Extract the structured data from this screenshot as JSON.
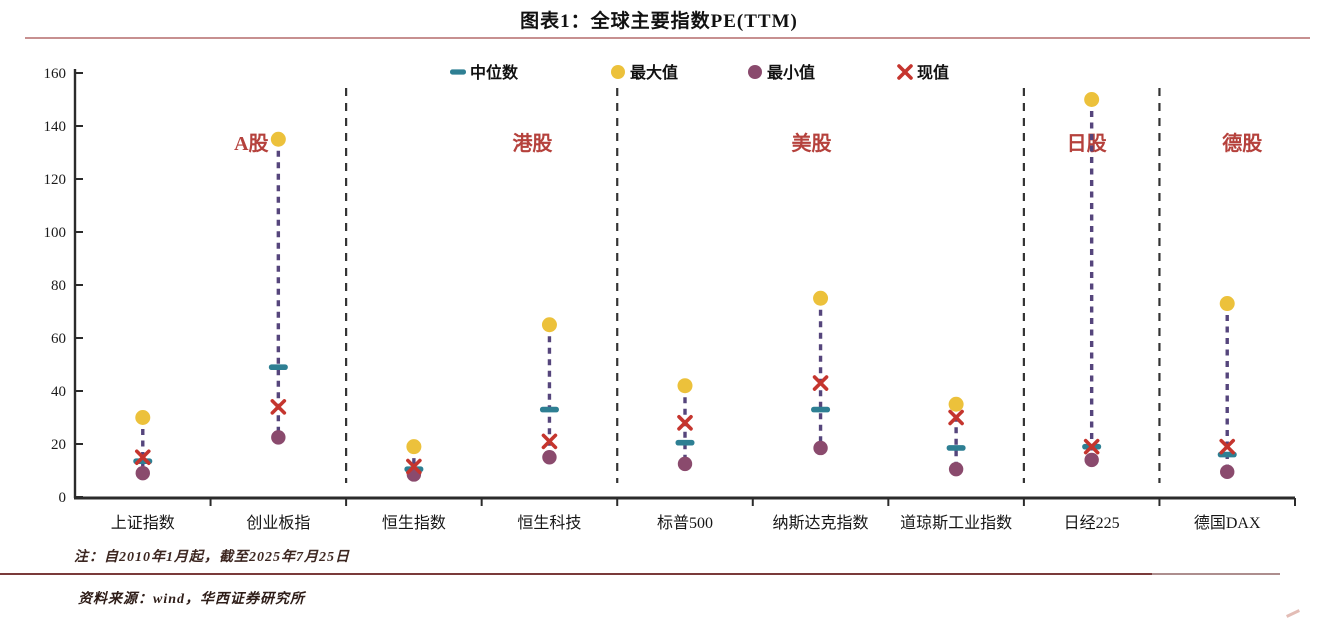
{
  "header": {
    "title": "图表1：全球主要指数PE(TTM)"
  },
  "colors": {
    "median": "#2e7f93",
    "max": "#ecc13b",
    "min": "#8a4a6d",
    "current": "#c5352e",
    "range_line": "#55457c",
    "group_label": "#b5413c",
    "axis": "#2b2b2b",
    "separator": "#333333"
  },
  "legend": [
    {
      "label": "中位数",
      "marker": "dash",
      "role": "median"
    },
    {
      "label": "最大值",
      "marker": "circle",
      "role": "max"
    },
    {
      "label": "最小值",
      "marker": "circle",
      "role": "min"
    },
    {
      "label": "现值",
      "marker": "x",
      "role": "current"
    }
  ],
  "chart_data": {
    "type": "scatter",
    "title": "图表1：全球主要指数PE(TTM)",
    "ylabel": "",
    "xlabel": "",
    "ylim": [
      0,
      160
    ],
    "yticks": [
      0,
      20,
      40,
      60,
      80,
      100,
      120,
      140,
      160
    ],
    "grid": false,
    "legend_position": "top",
    "categories": [
      "上证指数",
      "创业板指",
      "恒生指数",
      "恒生科技",
      "标普500",
      "纳斯达克指数",
      "道琼斯工业指数",
      "日经225",
      "德国DAX"
    ],
    "series": [
      {
        "name": "中位数",
        "role": "median",
        "values": [
          13.5,
          49,
          10.5,
          33,
          20.5,
          33,
          18.5,
          19,
          16
        ]
      },
      {
        "name": "最大值",
        "role": "max",
        "values": [
          30,
          135,
          19,
          65,
          42,
          75,
          35,
          150,
          73
        ]
      },
      {
        "name": "最小值",
        "role": "min",
        "values": [
          9,
          22.5,
          8.5,
          15,
          12.5,
          18.5,
          10.5,
          14,
          9.5
        ]
      },
      {
        "name": "现值",
        "role": "current",
        "values": [
          15,
          34,
          11.5,
          21,
          28,
          43,
          30,
          19,
          19
        ]
      }
    ],
    "groups": [
      {
        "label": "A股",
        "span": [
          0,
          1
        ],
        "anchor": 1,
        "dx": -27
      },
      {
        "label": "港股",
        "span": [
          2,
          3
        ],
        "anchor": 3,
        "dx": -17
      },
      {
        "label": "美股",
        "span": [
          4,
          6
        ],
        "anchor": 5,
        "dx": -9
      },
      {
        "label": "日股",
        "span": [
          7,
          7
        ],
        "anchor": 7,
        "dx": -5
      },
      {
        "label": "德股",
        "span": [
          8,
          8
        ],
        "anchor": 8,
        "dx": 15
      }
    ]
  },
  "notes": {
    "note": "注：自2010年1月起，截至2025年7月25日",
    "source": "资料来源：wind，华西证券研究所"
  }
}
